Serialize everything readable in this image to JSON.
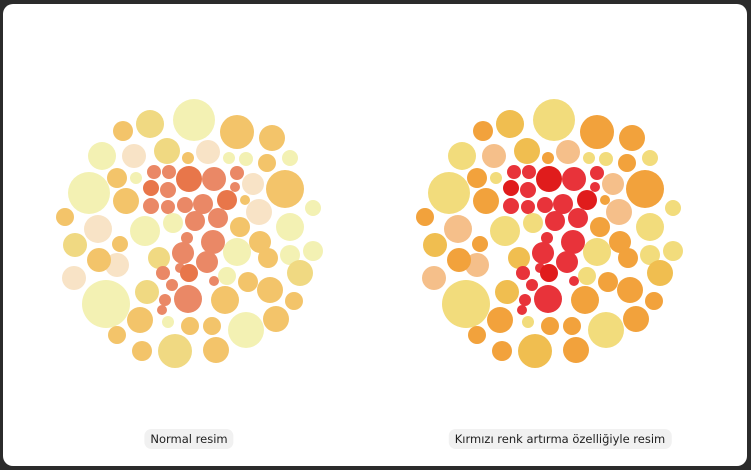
{
  "plates": [
    {
      "name": "normal",
      "caption": "Normal resim",
      "palette": {
        "L": "#f3f1b3",
        "Y": "#f0d982",
        "O": "#f3c46a",
        "P": "#f8e3c6",
        "R": "#ea8866",
        "D": "#e8764a"
      }
    },
    {
      "name": "red-enhanced",
      "caption": "Kırmızı renk artırma özelliğiyle resim",
      "palette": {
        "L": "#f2dc7c",
        "Y": "#f0be50",
        "O": "#f2a23c",
        "P": "#f5bf8a",
        "R": "#e8333a",
        "D": "#e01c1c"
      }
    }
  ]
}
